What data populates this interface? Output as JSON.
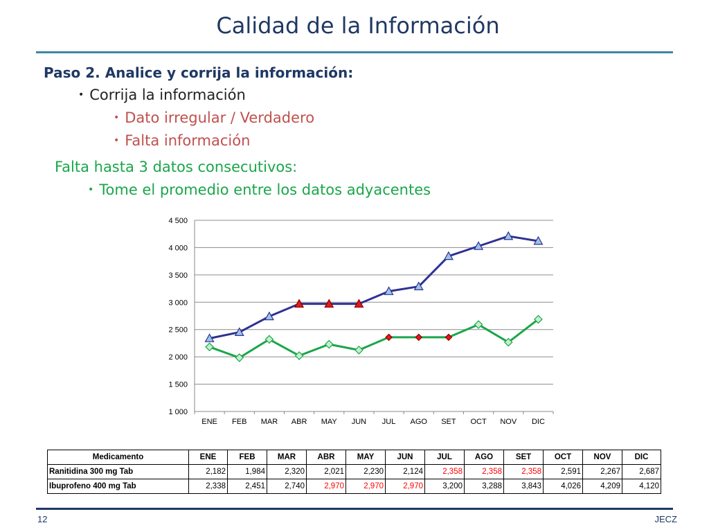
{
  "title": "Calidad de la Información",
  "step": "Paso 2. Analice y corrija la información:",
  "bullets": {
    "correct": "Corrija la información",
    "irregular": "Dato irregular / Verdadero",
    "missing": "Falta información",
    "gap_rule": "Falta hasta 3 datos consecutivos:",
    "average": "Tome el promedio entre los datos adyacentes"
  },
  "colors": {
    "title": "#1f3864",
    "irregular_text": "#c0504d",
    "rule_text": "#1aa64a",
    "ibuprofeno_line": "#2e3192",
    "ranitidina_line": "#1aa64a",
    "corrected_marker": "#e31a1c"
  },
  "chart_data": {
    "type": "line",
    "categories": [
      "ENE",
      "FEB",
      "MAR",
      "ABR",
      "MAY",
      "JUN",
      "JUL",
      "AGO",
      "SET",
      "OCT",
      "NOV",
      "DIC"
    ],
    "ylim": [
      1000,
      4500
    ],
    "yticks": [
      1000,
      1500,
      2000,
      2500,
      3000,
      3500,
      4000,
      4500
    ],
    "ytick_labels": [
      "1 000",
      "1 500",
      "2 000",
      "2 500",
      "3 000",
      "3 500",
      "4 000",
      "4 500"
    ],
    "grid": true,
    "series": [
      {
        "values": [
          2338,
          2451,
          2740,
          2970,
          2970,
          2970,
          3200,
          3288,
          3843,
          4026,
          4209,
          4120
        ],
        "color": "#2e3192",
        "marker": "triangle",
        "marker_fill": "#9dc3e6",
        "corrected_indices": [
          3,
          4,
          5
        ]
      },
      {
        "values": [
          2182,
          1984,
          2320,
          2021,
          2230,
          2124,
          2358,
          2358,
          2358,
          2591,
          2267,
          2687
        ],
        "color": "#1aa64a",
        "marker": "diamond",
        "marker_fill": "#c6efce",
        "corrected_indices": [
          6,
          7,
          8
        ]
      }
    ]
  },
  "table": {
    "headers": [
      "Medicamento",
      "ENE",
      "FEB",
      "MAR",
      "ABR",
      "MAY",
      "JUN",
      "JUL",
      "AGO",
      "SET",
      "OCT",
      "NOV",
      "DIC"
    ],
    "rows": [
      {
        "name": "Ranitidina 300 mg Tab",
        "values": [
          "2,182",
          "1,984",
          "2,320",
          "2,021",
          "2,230",
          "2,124",
          "2,358",
          "2,358",
          "2,358",
          "2,591",
          "2,267",
          "2,687"
        ],
        "highlighted": [
          6,
          7,
          8
        ]
      },
      {
        "name": "Ibuprofeno 400 mg Tab",
        "values": [
          "2,338",
          "2,451",
          "2,740",
          "2,970",
          "2,970",
          "2,970",
          "3,200",
          "3,288",
          "3,843",
          "4,026",
          "4,209",
          "4,120"
        ],
        "highlighted": [
          3,
          4,
          5
        ]
      }
    ]
  },
  "footer": {
    "page": "12",
    "author": "JECZ"
  }
}
